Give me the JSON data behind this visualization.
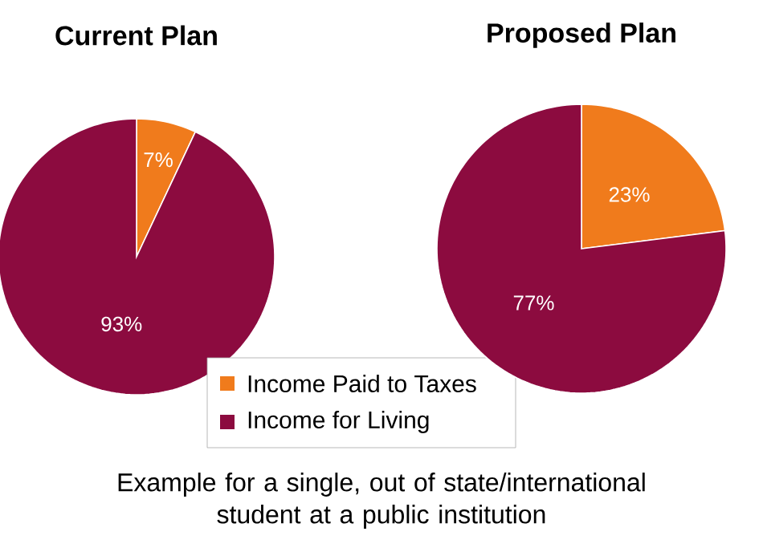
{
  "chart_data": [
    {
      "type": "pie",
      "title": "Current Plan",
      "categories": [
        "Income Paid to Taxes",
        "Income for Living"
      ],
      "values": [
        7,
        93
      ],
      "value_labels": [
        "7%",
        "93%"
      ],
      "colors": [
        "#f07b1c",
        "#8c0b3f"
      ],
      "legend": "bottom",
      "annotations": [
        "Example for a single, out of state/international student at a public institution"
      ]
    },
    {
      "type": "pie",
      "title": "Proposed Plan",
      "categories": [
        null,
        null
      ],
      "values": [
        23,
        77
      ],
      "value_labels": [
        "23%",
        "77%"
      ],
      "colors": [
        "#f07b1c",
        "#8c0b3f"
      ]
    }
  ]
}
